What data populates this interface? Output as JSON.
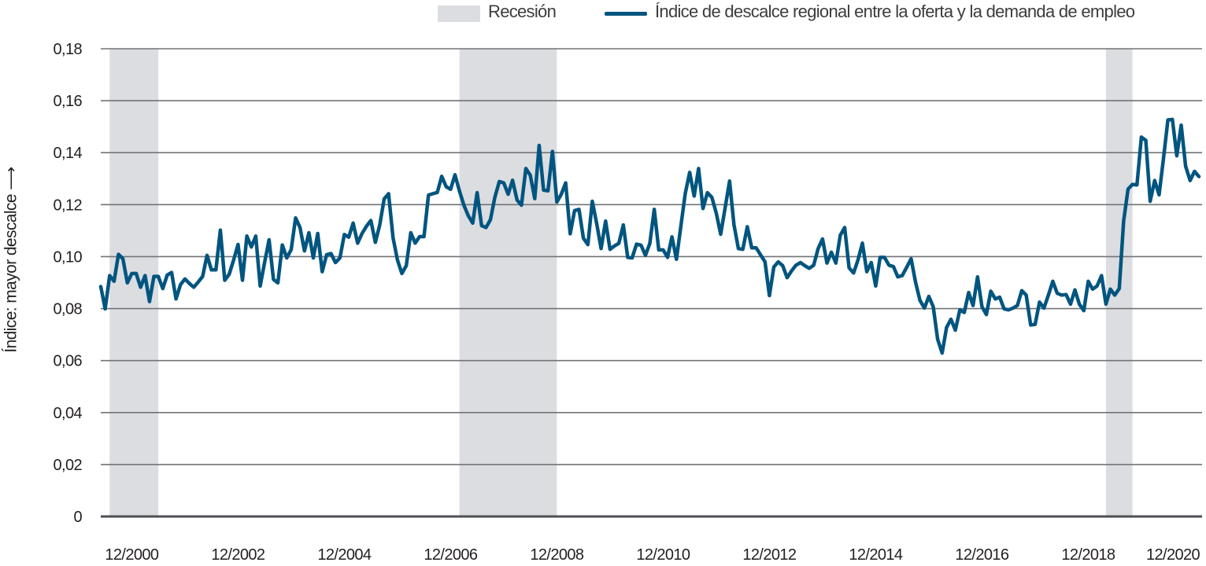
{
  "legend": {
    "recession_label": "Recesión",
    "series_label": "Índice de descalce regional entre la oferta y la demanda de empleo"
  },
  "colors": {
    "line": "#00557f",
    "recession": "#dcdde1",
    "grid": "#727376",
    "axis": "#4d4f53"
  },
  "chart_data": {
    "type": "line",
    "title": "",
    "xlabel": "",
    "ylabel": "Índice: mayor descalce ⟶",
    "ylim": [
      0,
      0.18
    ],
    "yticks": [
      0,
      0.02,
      0.04,
      0.06,
      0.08,
      0.1,
      0.12,
      0.14,
      0.16,
      0.18
    ],
    "ytick_labels": [
      "0",
      "0,02",
      "0,04",
      "0,06",
      "0,08",
      "0,10",
      "0,12",
      "0,14",
      "0,16",
      "0,18"
    ],
    "xticks": [
      "2000-12",
      "2002-12",
      "2004-12",
      "2006-12",
      "2008-12",
      "2010-12",
      "2012-12",
      "2014-12",
      "2016-12",
      "2018-12",
      "2020-12"
    ],
    "xtick_labels": [
      "12/2000",
      "12/2002",
      "12/2004",
      "12/2006",
      "12/2008",
      "12/2010",
      "12/2012",
      "12/2014",
      "12/2016",
      "12/2018",
      "12/2020"
    ],
    "grid": true,
    "legend_position": "top",
    "recessions": [
      [
        "2000-07",
        "2001-06"
      ],
      [
        "2007-02",
        "2008-12"
      ],
      [
        "2019-04",
        "2019-10"
      ]
    ],
    "series": [
      {
        "name": "Índice de descalce regional entre la oferta y la demanda de empleo",
        "start": "2000-05",
        "frequency": "monthly",
        "values": [
          0.0885,
          0.0799,
          0.0927,
          0.0905,
          0.1009,
          0.0992,
          0.0899,
          0.0935,
          0.0935,
          0.0882,
          0.0927,
          0.0827,
          0.0924,
          0.0924,
          0.0877,
          0.0929,
          0.0939,
          0.0837,
          0.0892,
          0.0914,
          0.0897,
          0.0882,
          0.0902,
          0.0924,
          0.1005,
          0.0949,
          0.0949,
          0.1102,
          0.0909,
          0.0932,
          0.0987,
          0.1047,
          0.0909,
          0.1079,
          0.1037,
          0.1079,
          0.0887,
          0.0977,
          0.1065,
          0.0912,
          0.0899,
          0.1045,
          0.0995,
          0.1027,
          0.1149,
          0.1112,
          0.1022,
          0.1092,
          0.0995,
          0.1089,
          0.0942,
          0.1007,
          0.1012,
          0.0977,
          0.0995,
          0.1085,
          0.1075,
          0.1129,
          0.1052,
          0.1089,
          0.1117,
          0.1139,
          0.1055,
          0.1122,
          0.1222,
          0.1242,
          0.1072,
          0.0987,
          0.0935,
          0.0965,
          0.1092,
          0.1052,
          0.1077,
          0.1077,
          0.1237,
          0.1242,
          0.1247,
          0.1309,
          0.1269,
          0.1259,
          0.1315,
          0.1253,
          0.1198,
          0.1157,
          0.1129,
          0.1246,
          0.1119,
          0.1112,
          0.1142,
          0.1228,
          0.1289,
          0.1284,
          0.124,
          0.1294,
          0.1218,
          0.1198,
          0.1339,
          0.1314,
          0.1223,
          0.1428,
          0.1256,
          0.1253,
          0.1405,
          0.121,
          0.124,
          0.1284,
          0.1088,
          0.1177,
          0.1182,
          0.1071,
          0.1046,
          0.1213,
          0.1127,
          0.1031,
          0.1137,
          0.1028,
          0.1041,
          0.1051,
          0.1122,
          0.0997,
          0.0995,
          0.1048,
          0.1044,
          0.1005,
          0.1051,
          0.1182,
          0.1026,
          0.1026,
          0.0997,
          0.1076,
          0.099,
          0.1117,
          0.1243,
          0.1324,
          0.1233,
          0.1339,
          0.1185,
          0.1246,
          0.1228,
          0.1167,
          0.1086,
          0.1187,
          0.1291,
          0.1122,
          0.1031,
          0.1028,
          0.1115,
          0.1034,
          0.1034,
          0.1007,
          0.098,
          0.085,
          0.096,
          0.098,
          0.0965,
          0.0919,
          0.0945,
          0.0967,
          0.0977,
          0.0965,
          0.0955,
          0.0967,
          0.1031,
          0.1068,
          0.0975,
          0.1017,
          0.0975,
          0.1082,
          0.1112,
          0.0957,
          0.0937,
          0.0987,
          0.1052,
          0.0942,
          0.0977,
          0.0887,
          0.0997,
          0.0997,
          0.0967,
          0.0962,
          0.0922,
          0.0927,
          0.0959,
          0.0992,
          0.0902,
          0.0832,
          0.0802,
          0.0847,
          0.0807,
          0.0682,
          0.0629,
          0.0727,
          0.0759,
          0.0717,
          0.0795,
          0.0785,
          0.0862,
          0.0812,
          0.0922,
          0.0807,
          0.0777,
          0.0867,
          0.0837,
          0.0844,
          0.0799,
          0.0795,
          0.0802,
          0.0812,
          0.0869,
          0.0852,
          0.0737,
          0.0739,
          0.0825,
          0.0802,
          0.0852,
          0.0905,
          0.0859,
          0.0852,
          0.0854,
          0.0817,
          0.0872,
          0.0817,
          0.0792,
          0.0905,
          0.0875,
          0.0887,
          0.0927,
          0.0817,
          0.0875,
          0.0852,
          0.0877,
          0.1138,
          0.126,
          0.1278,
          0.1276,
          0.146,
          0.1448,
          0.1213,
          0.1293,
          0.1238,
          0.1378,
          0.1526,
          0.1528,
          0.1388,
          0.1506,
          0.1348,
          0.1293,
          0.1328,
          0.1308
        ]
      }
    ]
  }
}
